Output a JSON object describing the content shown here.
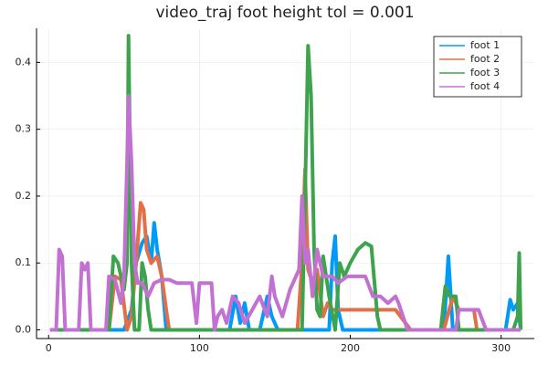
{
  "chart_data": {
    "type": "line",
    "title": "video_traj foot height tol = 0.001",
    "xlim": [
      -8,
      322
    ],
    "xticks": [
      0,
      100,
      200,
      300
    ],
    "ylim": [
      -0.013,
      0.451
    ],
    "yticks": [
      {
        "value": 0,
        "label": "0.0"
      },
      0.1,
      0.2,
      0.3,
      0.4
    ],
    "grid": true,
    "legend": "top-right",
    "series": [
      {
        "name": "foot 1",
        "color": "#009af9",
        "x": [
          1,
          50,
          55,
          58,
          62,
          65,
          68,
          70,
          72,
          75,
          78,
          120,
          124,
          127,
          130,
          133,
          140,
          145,
          148,
          152,
          186,
          188,
          190,
          192,
          195,
          262,
          265,
          268,
          303,
          306,
          308,
          311,
          313
        ],
        "values": [
          0,
          0,
          0.03,
          0.1,
          0.13,
          0.14,
          0.1,
          0.16,
          0.12,
          0.08,
          0,
          0,
          0.05,
          0.01,
          0.04,
          0,
          0,
          0.05,
          0.02,
          0,
          0,
          0.1,
          0.14,
          0.03,
          0,
          0,
          0.11,
          0,
          0,
          0.045,
          0.03,
          0.04,
          0
        ]
      },
      {
        "name": "foot 2",
        "color": "#e26f46",
        "x": [
          1,
          40,
          44,
          48,
          52,
          55,
          58,
          61,
          63,
          65,
          68,
          72,
          75,
          78,
          80,
          165,
          168,
          170,
          172,
          175,
          178,
          182,
          185,
          188,
          195,
          200,
          230,
          240,
          262,
          268,
          272,
          275,
          282,
          284,
          313
        ],
        "values": [
          0,
          0,
          0.08,
          0.075,
          0,
          0.02,
          0.1,
          0.19,
          0.18,
          0.12,
          0.1,
          0.11,
          0.08,
          0.03,
          0,
          0,
          0.1,
          0.24,
          0.09,
          0.07,
          0.09,
          0.02,
          0.04,
          0.03,
          0.03,
          0.03,
          0.03,
          0,
          0,
          0.05,
          0.03,
          0.03,
          0.03,
          0,
          0
        ]
      },
      {
        "name": "foot 3",
        "color": "#3da44d",
        "x": [
          1,
          40,
          43,
          46,
          50,
          52,
          53,
          55,
          57,
          60,
          62,
          64,
          66,
          68,
          70,
          72,
          168,
          170,
          172,
          174,
          176,
          178,
          180,
          182,
          186,
          190,
          193,
          196,
          200,
          205,
          210,
          214,
          218,
          220,
          260,
          263,
          266,
          270,
          272,
          275,
          308,
          311,
          312,
          313
        ],
        "values": [
          0,
          0,
          0.11,
          0.1,
          0.06,
          0.1,
          0.44,
          0.1,
          0,
          0,
          0.1,
          0.08,
          0.03,
          0,
          0,
          0,
          0,
          0.2,
          0.425,
          0.35,
          0.12,
          0.03,
          0.02,
          0.11,
          0.05,
          0,
          0.1,
          0.08,
          0.1,
          0.12,
          0.13,
          0.125,
          0.02,
          0,
          0,
          0.065,
          0.05,
          0.05,
          0,
          0,
          0,
          0.02,
          0.115,
          0
        ]
      },
      {
        "name": "foot 4",
        "color": "#c271d2",
        "x": [
          1,
          5,
          7,
          9,
          11,
          13,
          20,
          22,
          24,
          26,
          28,
          38,
          40,
          44,
          48,
          50,
          52,
          53,
          55,
          57,
          59,
          62,
          66,
          70,
          75,
          80,
          85,
          90,
          95,
          98,
          100,
          105,
          108,
          110,
          112,
          115,
          118,
          122,
          126,
          130,
          135,
          140,
          145,
          148,
          150,
          155,
          160,
          166,
          168,
          170,
          172,
          175,
          178,
          182,
          188,
          192,
          198,
          204,
          210,
          215,
          220,
          225,
          230,
          232,
          235,
          238,
          270,
          272,
          280,
          283,
          285,
          290,
          300,
          313
        ],
        "values": [
          0,
          0,
          0.12,
          0.11,
          0,
          0,
          0,
          0.1,
          0.09,
          0.1,
          0,
          0,
          0.08,
          0.075,
          0.04,
          0.08,
          0.25,
          0.35,
          0.25,
          0.1,
          0.07,
          0.07,
          0.05,
          0.07,
          0.075,
          0.075,
          0.07,
          0.07,
          0.07,
          0.01,
          0.07,
          0.07,
          0.07,
          0,
          0.02,
          0.03,
          0.01,
          0.05,
          0.04,
          0.01,
          0.03,
          0.05,
          0.02,
          0.08,
          0.05,
          0.02,
          0.06,
          0.09,
          0.2,
          0.1,
          0.12,
          0.05,
          0.12,
          0.08,
          0.08,
          0.07,
          0.08,
          0.08,
          0.08,
          0.05,
          0.05,
          0.04,
          0.05,
          0.04,
          0.02,
          0,
          0,
          0.03,
          0.03,
          0.03,
          0.03,
          0,
          0,
          0
        ]
      }
    ]
  }
}
